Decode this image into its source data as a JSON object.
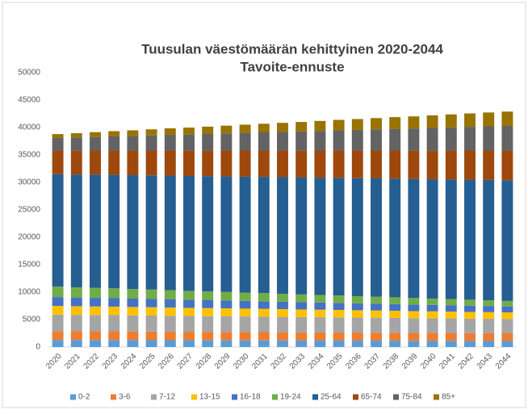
{
  "chart_data": {
    "type": "stacked_bar",
    "title": "Tuusulan väestömäärän kehittyinen 2020-2044",
    "subtitle": "Tavoite-ennuste",
    "categories": [
      "2020",
      "2021",
      "2022",
      "2023",
      "2024",
      "2025",
      "2026",
      "2027",
      "2028",
      "2029",
      "2030",
      "2031",
      "2032",
      "2033",
      "2034",
      "2035",
      "2036",
      "2037",
      "2038",
      "2039",
      "2040",
      "2041",
      "2042",
      "2043",
      "2044"
    ],
    "series": [
      {
        "name": "0-2",
        "color": "#5b9bd5",
        "values": [
          1300,
          1290,
          1280,
          1280,
          1270,
          1260,
          1250,
          1240,
          1230,
          1230,
          1220,
          1210,
          1200,
          1190,
          1180,
          1180,
          1170,
          1160,
          1150,
          1140,
          1130,
          1130,
          1120,
          1110,
          1100
        ]
      },
      {
        "name": "3-6",
        "color": "#ed7d31",
        "values": [
          1600,
          1590,
          1580,
          1580,
          1570,
          1560,
          1550,
          1540,
          1530,
          1530,
          1520,
          1510,
          1500,
          1490,
          1480,
          1480,
          1470,
          1460,
          1450,
          1440,
          1430,
          1430,
          1420,
          1410,
          1400
        ]
      },
      {
        "name": "7-12",
        "color": "#a5a5a5",
        "values": [
          3000,
          2980,
          2970,
          2950,
          2930,
          2920,
          2900,
          2880,
          2870,
          2850,
          2830,
          2820,
          2800,
          2780,
          2770,
          2750,
          2730,
          2720,
          2700,
          2680,
          2670,
          2650,
          2630,
          2620,
          2600
        ]
      },
      {
        "name": "13-15",
        "color": "#ffc000",
        "values": [
          1600,
          1580,
          1570,
          1550,
          1530,
          1520,
          1500,
          1480,
          1470,
          1450,
          1430,
          1420,
          1400,
          1380,
          1370,
          1350,
          1330,
          1320,
          1300,
          1280,
          1270,
          1250,
          1230,
          1220,
          1200
        ]
      },
      {
        "name": "16-18",
        "color": "#4472c4",
        "values": [
          1600,
          1580,
          1560,
          1540,
          1520,
          1500,
          1480,
          1450,
          1430,
          1410,
          1390,
          1370,
          1350,
          1330,
          1310,
          1290,
          1270,
          1250,
          1230,
          1200,
          1180,
          1160,
          1140,
          1120,
          1100
        ]
      },
      {
        "name": "19-24",
        "color": "#70ad47",
        "values": [
          1900,
          1860,
          1830,
          1790,
          1750,
          1710,
          1680,
          1640,
          1600,
          1560,
          1530,
          1490,
          1450,
          1410,
          1380,
          1340,
          1300,
          1260,
          1230,
          1190,
          1150,
          1110,
          1080,
          1040,
          1000
        ]
      },
      {
        "name": "25-64",
        "color": "#255e91",
        "values": [
          20500,
          20560,
          20630,
          20690,
          20750,
          20810,
          20880,
          20940,
          21000,
          21060,
          21130,
          21190,
          21250,
          21310,
          21380,
          21440,
          21500,
          21560,
          21630,
          21690,
          21750,
          21810,
          21880,
          21940,
          22000
        ]
      },
      {
        "name": "65-74",
        "color": "#9e480e",
        "values": [
          4300,
          4350,
          4390,
          4440,
          4480,
          4530,
          4580,
          4620,
          4670,
          4710,
          4760,
          4800,
          4850,
          4900,
          4940,
          4990,
          5030,
          5080,
          5120,
          5170,
          5220,
          5260,
          5310,
          5350,
          5400
        ]
      },
      {
        "name": "75-84",
        "color": "#636363",
        "values": [
          2300,
          2390,
          2480,
          2580,
          2670,
          2760,
          2850,
          2940,
          3030,
          3130,
          3220,
          3310,
          3400,
          3490,
          3580,
          3680,
          3770,
          3860,
          3950,
          4040,
          4130,
          4230,
          4320,
          4410,
          4500
        ]
      },
      {
        "name": "85+",
        "color": "#997300",
        "values": [
          700,
          780,
          860,
          940,
          1020,
          1100,
          1180,
          1250,
          1330,
          1410,
          1490,
          1570,
          1650,
          1730,
          1810,
          1890,
          1970,
          2050,
          2130,
          2200,
          2280,
          2360,
          2440,
          2520,
          2600
        ]
      }
    ],
    "ylim": [
      0,
      50000
    ],
    "yticks": [
      0,
      5000,
      10000,
      15000,
      20000,
      25000,
      30000,
      35000,
      40000,
      45000,
      50000
    ],
    "grid": false,
    "legend": "bottom"
  }
}
